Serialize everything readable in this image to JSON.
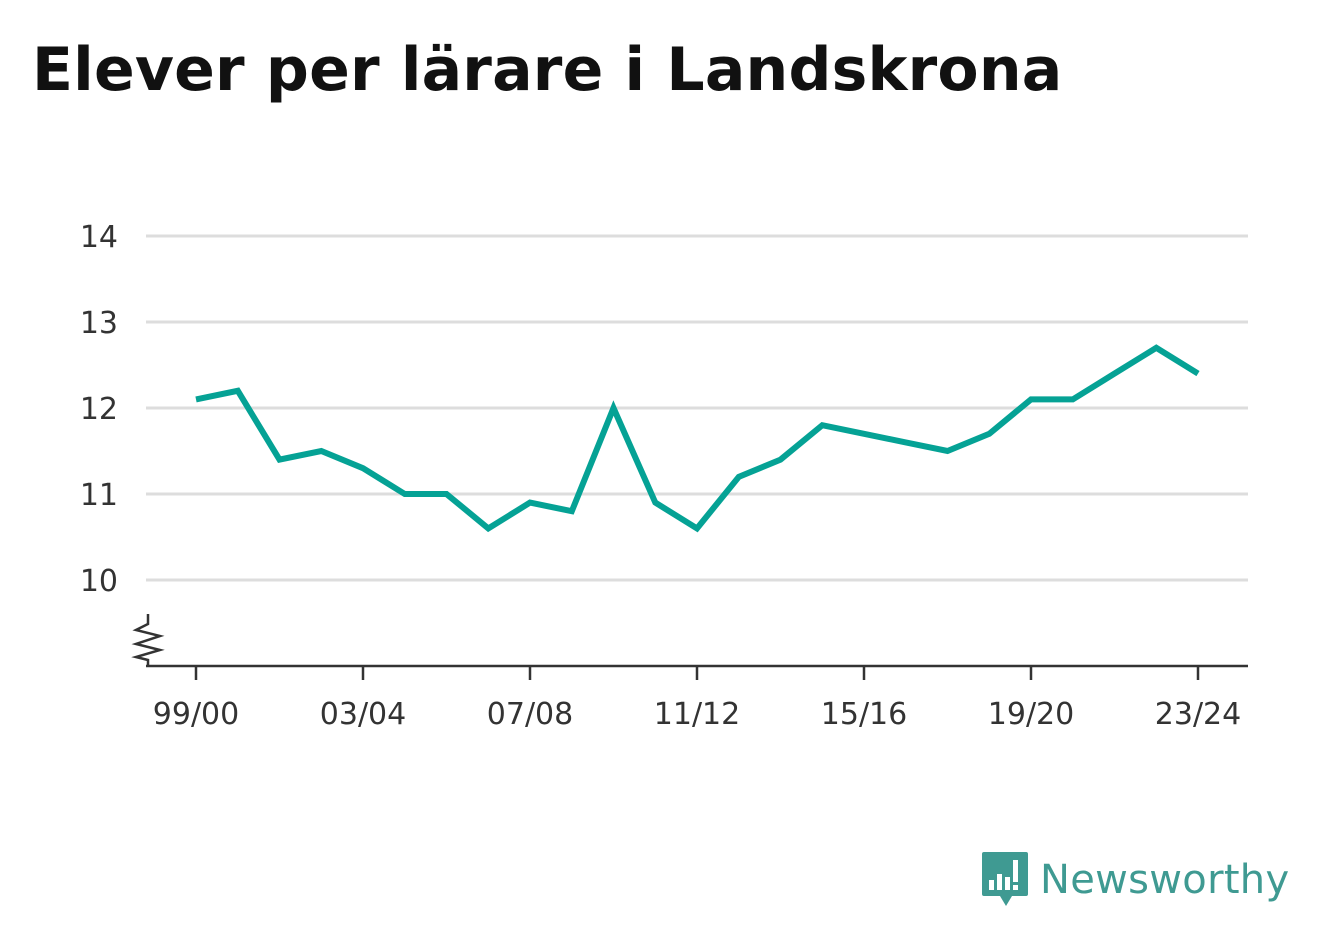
{
  "title": "Elever per lärare i Landskrona",
  "brand": "Newsworthy",
  "colors": {
    "line": "#05a295",
    "grid": "#dddddd",
    "axis": "#333333",
    "brand": "#3f9a92"
  },
  "chart_data": {
    "type": "line",
    "title": "Elever per lärare i Landskrona",
    "xlabel": "",
    "ylabel": "",
    "ylim": [
      9,
      14
    ],
    "y_ticks": [
      10,
      11,
      12,
      13,
      14
    ],
    "x_tick_labels": [
      "99/00",
      "03/04",
      "07/08",
      "11/12",
      "15/16",
      "19/20",
      "23/24"
    ],
    "y_axis_break": true,
    "grid": "horizontal",
    "x": [
      "99/00",
      "00/01",
      "01/02",
      "02/03",
      "03/04",
      "04/05",
      "05/06",
      "06/07",
      "07/08",
      "08/09",
      "09/10",
      "10/11",
      "11/12",
      "12/13",
      "13/14",
      "14/15",
      "15/16",
      "16/17",
      "17/18",
      "18/19",
      "19/20",
      "20/21",
      "21/22",
      "22/23",
      "23/24"
    ],
    "series": [
      {
        "values": [
          12.1,
          12.2,
          11.4,
          11.5,
          11.3,
          11.0,
          11.0,
          10.6,
          10.9,
          10.8,
          12.0,
          10.9,
          10.6,
          11.2,
          11.4,
          11.8,
          11.7,
          11.6,
          11.5,
          11.7,
          12.1,
          12.1,
          12.4,
          12.7,
          12.4
        ]
      }
    ]
  }
}
